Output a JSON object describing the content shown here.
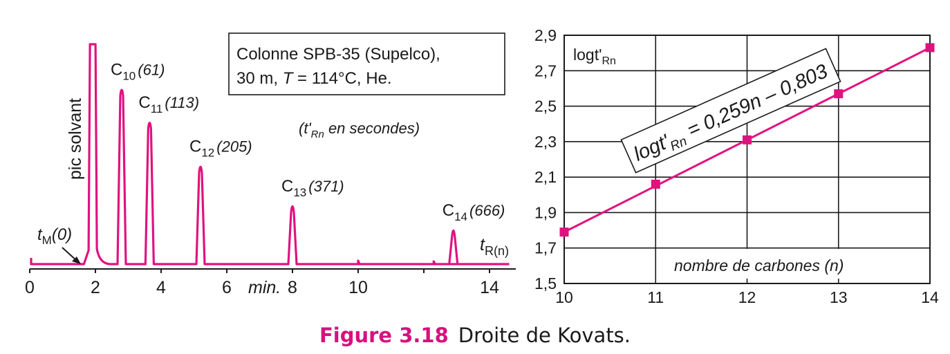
{
  "colors": {
    "accent": "#e0127f",
    "caption": "#d6117e",
    "ink": "#1a1a1a"
  },
  "chromatogram": {
    "type": "line",
    "x_ticks": [
      "0",
      "2",
      "4",
      "6",
      "8",
      "10",
      "14"
    ],
    "x_unit": "min.",
    "x_label_sub": "R(n)",
    "xlim": [
      0,
      14.8
    ],
    "solvent_label": "pic solvant",
    "tm_label": "t",
    "tm_sub": "M",
    "tm_value": "(0)",
    "tm_time": 1.75,
    "box_line1": "Colonne SPB-35 (Supelco),",
    "box_line2_a": "30 m, ",
    "box_line2_T": "T",
    "box_line2_b": " = 114°C, He.",
    "units_open": "(t'",
    "units_sub": "Rn",
    "units_rest": " en secondes)",
    "peaks": [
      {
        "name": "C",
        "sub": "10",
        "value": "(61)",
        "t": 2.8,
        "height": 0.81
      },
      {
        "name": "C",
        "sub": "11",
        "value": "(113)",
        "t": 3.65,
        "height": 0.66
      },
      {
        "name": "C",
        "sub": "12",
        "value": "(205)",
        "t": 5.2,
        "height": 0.46
      },
      {
        "name": "C",
        "sub": "13",
        "value": "(371)",
        "t": 8.0,
        "height": 0.28
      },
      {
        "name": "C",
        "sub": "14",
        "value": "(666)",
        "t": 12.9,
        "height": 0.17
      }
    ]
  },
  "chart_data": {
    "type": "scatter",
    "x": [
      10,
      11,
      12,
      13,
      14
    ],
    "y": [
      1.79,
      2.06,
      2.31,
      2.57,
      2.83
    ],
    "xlim": [
      10,
      14
    ],
    "ylim": [
      1.5,
      2.9
    ],
    "x_ticks": [
      "10",
      "11",
      "12",
      "13",
      "14"
    ],
    "y_ticks": [
      "1,5",
      "1,7",
      "1,9",
      "2,1",
      "2,3",
      "2,5",
      "2,7",
      "2,9"
    ],
    "xlabel": "nombre de carbones (n)",
    "ylabel": "logt'",
    "ylabel_sub": "Rn",
    "grid": true,
    "equation_a": "logt'",
    "equation_sub": "Rn",
    "equation_b": " = 0,259n – 0,803"
  },
  "caption": {
    "figure": "Figure 3.18",
    "text": "Droite de Kovats."
  }
}
